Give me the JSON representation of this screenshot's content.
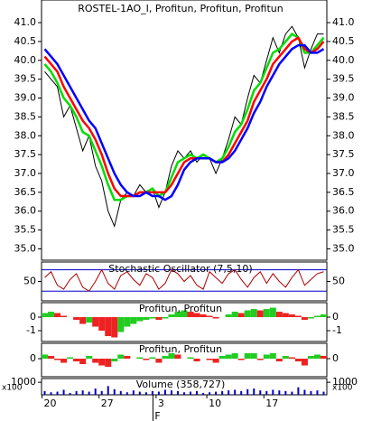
{
  "chart_data": [
    {
      "type": "line",
      "title": "ROSTEL-1AO_I, Profitun, Profitun, Profitun",
      "xlim": [
        0,
        45
      ],
      "ylim": [
        34.7,
        41.6
      ],
      "yticks": [
        {
          "value": 35,
          "label": "35.0"
        },
        {
          "value": 35.5,
          "label": "35.5"
        },
        {
          "value": 36,
          "label": "36.0"
        },
        {
          "value": 36.5,
          "label": "36.5"
        },
        {
          "value": 37,
          "label": "37.0"
        },
        {
          "value": 37.5,
          "label": "37.5"
        },
        {
          "value": 38,
          "label": "38.0"
        },
        {
          "value": 38.5,
          "label": "38.5"
        },
        {
          "value": 39,
          "label": "39.0"
        },
        {
          "value": 39.5,
          "label": "39.5"
        },
        {
          "value": 40,
          "label": "40.0"
        },
        {
          "value": 40.5,
          "label": "40.5"
        },
        {
          "value": 41,
          "label": "41.0"
        }
      ],
      "series": [
        {
          "color": "#000000",
          "values": [
            39.7,
            39.5,
            39.3,
            38.5,
            38.8,
            38.2,
            37.6,
            38.0,
            37.2,
            36.8,
            36.0,
            35.6,
            36.3,
            36.5,
            36.4,
            36.7,
            36.5,
            36.6,
            36.1,
            36.5,
            37.2,
            37.6,
            37.4,
            37.6,
            37.3,
            37.5,
            37.4,
            37.0,
            37.4,
            37.9,
            38.5,
            38.3,
            39.0,
            39.6,
            39.4,
            40.0,
            40.6,
            40.2,
            40.7,
            40.9,
            40.6,
            39.8,
            40.3,
            40.7,
            40.7
          ]
        },
        {
          "color": "#00dd00",
          "values": [
            39.9,
            39.7,
            39.4,
            39.0,
            38.8,
            38.5,
            38.1,
            38.0,
            37.6,
            37.2,
            36.7,
            36.3,
            36.3,
            36.4,
            36.4,
            36.5,
            36.5,
            36.6,
            36.4,
            36.5,
            36.9,
            37.3,
            37.4,
            37.5,
            37.4,
            37.5,
            37.4,
            37.3,
            37.4,
            37.7,
            38.1,
            38.3,
            38.7,
            39.2,
            39.4,
            39.8,
            40.2,
            40.3,
            40.5,
            40.7,
            40.6,
            40.2,
            40.2,
            40.4,
            40.6
          ]
        },
        {
          "color": "#ff0000",
          "values": [
            40.1,
            39.9,
            39.7,
            39.3,
            39.0,
            38.7,
            38.4,
            38.2,
            37.9,
            37.5,
            37.0,
            36.6,
            36.4,
            36.4,
            36.4,
            36.5,
            36.5,
            36.5,
            36.5,
            36.5,
            36.7,
            37.0,
            37.3,
            37.4,
            37.4,
            37.4,
            37.4,
            37.3,
            37.3,
            37.5,
            37.8,
            38.1,
            38.4,
            38.9,
            39.2,
            39.5,
            39.9,
            40.1,
            40.3,
            40.5,
            40.6,
            40.3,
            40.2,
            40.3,
            40.5
          ]
        },
        {
          "color": "#0000ff",
          "values": [
            40.3,
            40.1,
            39.9,
            39.6,
            39.3,
            39.0,
            38.7,
            38.4,
            38.2,
            37.8,
            37.4,
            37.0,
            36.7,
            36.5,
            36.4,
            36.4,
            36.5,
            36.4,
            36.4,
            36.3,
            36.4,
            36.7,
            37.1,
            37.3,
            37.4,
            37.4,
            37.4,
            37.3,
            37.3,
            37.4,
            37.6,
            37.9,
            38.2,
            38.6,
            38.9,
            39.3,
            39.6,
            39.9,
            40.1,
            40.3,
            40.4,
            40.4,
            40.2,
            40.2,
            40.3
          ]
        }
      ]
    },
    {
      "type": "line",
      "title": "Stochastic Oscillator (7,5,10)",
      "xlim": [
        0,
        45
      ],
      "ylim": [
        0,
        100
      ],
      "yticks": [
        50
      ],
      "levels": [
        80,
        25
      ],
      "level_color": "#0000cc",
      "series": [
        {
          "color": "#aa0000",
          "values": [
            60,
            75,
            40,
            30,
            55,
            70,
            35,
            25,
            50,
            80,
            45,
            30,
            65,
            75,
            55,
            40,
            70,
            60,
            30,
            45,
            80,
            70,
            50,
            65,
            40,
            30,
            75,
            60,
            45,
            70,
            80,
            55,
            35,
            60,
            75,
            45,
            70,
            50,
            35,
            60,
            80,
            40,
            55,
            70,
            75
          ]
        }
      ]
    },
    {
      "type": "bar",
      "title": "Profitun, Profitun",
      "xlim": [
        0,
        45
      ],
      "ylim": [
        -1.8,
        1.07
      ],
      "yticks": [
        0,
        -1
      ],
      "up_color": "#22cc22",
      "down_color": "#ee2222",
      "values": [
        0.3,
        0.4,
        0.3,
        0.1,
        0.0,
        -0.2,
        -0.5,
        -0.4,
        -0.7,
        -1.0,
        -1.4,
        -1.5,
        -1.1,
        -0.7,
        -0.5,
        -0.3,
        -0.2,
        -0.1,
        -0.2,
        -0.1,
        0.2,
        0.4,
        0.5,
        0.4,
        0.3,
        0.2,
        0.1,
        -0.1,
        0.0,
        0.2,
        0.4,
        0.3,
        0.5,
        0.6,
        0.5,
        0.6,
        0.7,
        0.4,
        0.3,
        0.2,
        0.1,
        -0.2,
        -0.1,
        0.1,
        0.2
      ]
    },
    {
      "type": "bar",
      "title": "Profitun, Profitun",
      "xlim": [
        0,
        45
      ],
      "ylim": [
        -1.33,
        1.13
      ],
      "yticks": [
        0
      ],
      "up_color": "#22cc22",
      "down_color": "#ee2222",
      "values": [
        0.3,
        0.2,
        -0.1,
        -0.3,
        0.1,
        -0.2,
        -0.4,
        0.2,
        -0.3,
        -0.5,
        -0.6,
        -0.2,
        0.3,
        0.2,
        0.0,
        0.1,
        -0.1,
        0.1,
        -0.3,
        0.2,
        0.4,
        0.3,
        0.0,
        0.1,
        -0.2,
        0.0,
        -0.1,
        -0.3,
        0.2,
        0.3,
        0.4,
        -0.1,
        0.4,
        0.4,
        -0.1,
        0.3,
        0.4,
        -0.2,
        0.2,
        0.1,
        -0.2,
        -0.5,
        0.2,
        0.3,
        0.2
      ]
    },
    {
      "type": "bar",
      "title": "Volume (358,727)",
      "unit": "x100",
      "xlim": [
        0,
        45
      ],
      "ylim": [
        0,
        1300
      ],
      "yticks": [
        1000
      ],
      "color": "#0000cc",
      "values": [
        300,
        200,
        250,
        400,
        150,
        300,
        350,
        250,
        500,
        300,
        700,
        450,
        300,
        200,
        350,
        250,
        200,
        300,
        250,
        400,
        350,
        300,
        200,
        250,
        300,
        150,
        200,
        250,
        300,
        350,
        400,
        300,
        450,
        500,
        350,
        300,
        400,
        350,
        300,
        250,
        600,
        400,
        300,
        350,
        250
      ],
      "xticks": [
        {
          "value": 0,
          "label": "20"
        },
        {
          "value": 9,
          "label": "27"
        },
        {
          "value": 18,
          "label": "3"
        },
        {
          "value": 26,
          "label": "10"
        },
        {
          "value": 35,
          "label": "17"
        }
      ],
      "month_ticks": [
        {
          "value": 17.5,
          "label": "F"
        }
      ]
    }
  ]
}
